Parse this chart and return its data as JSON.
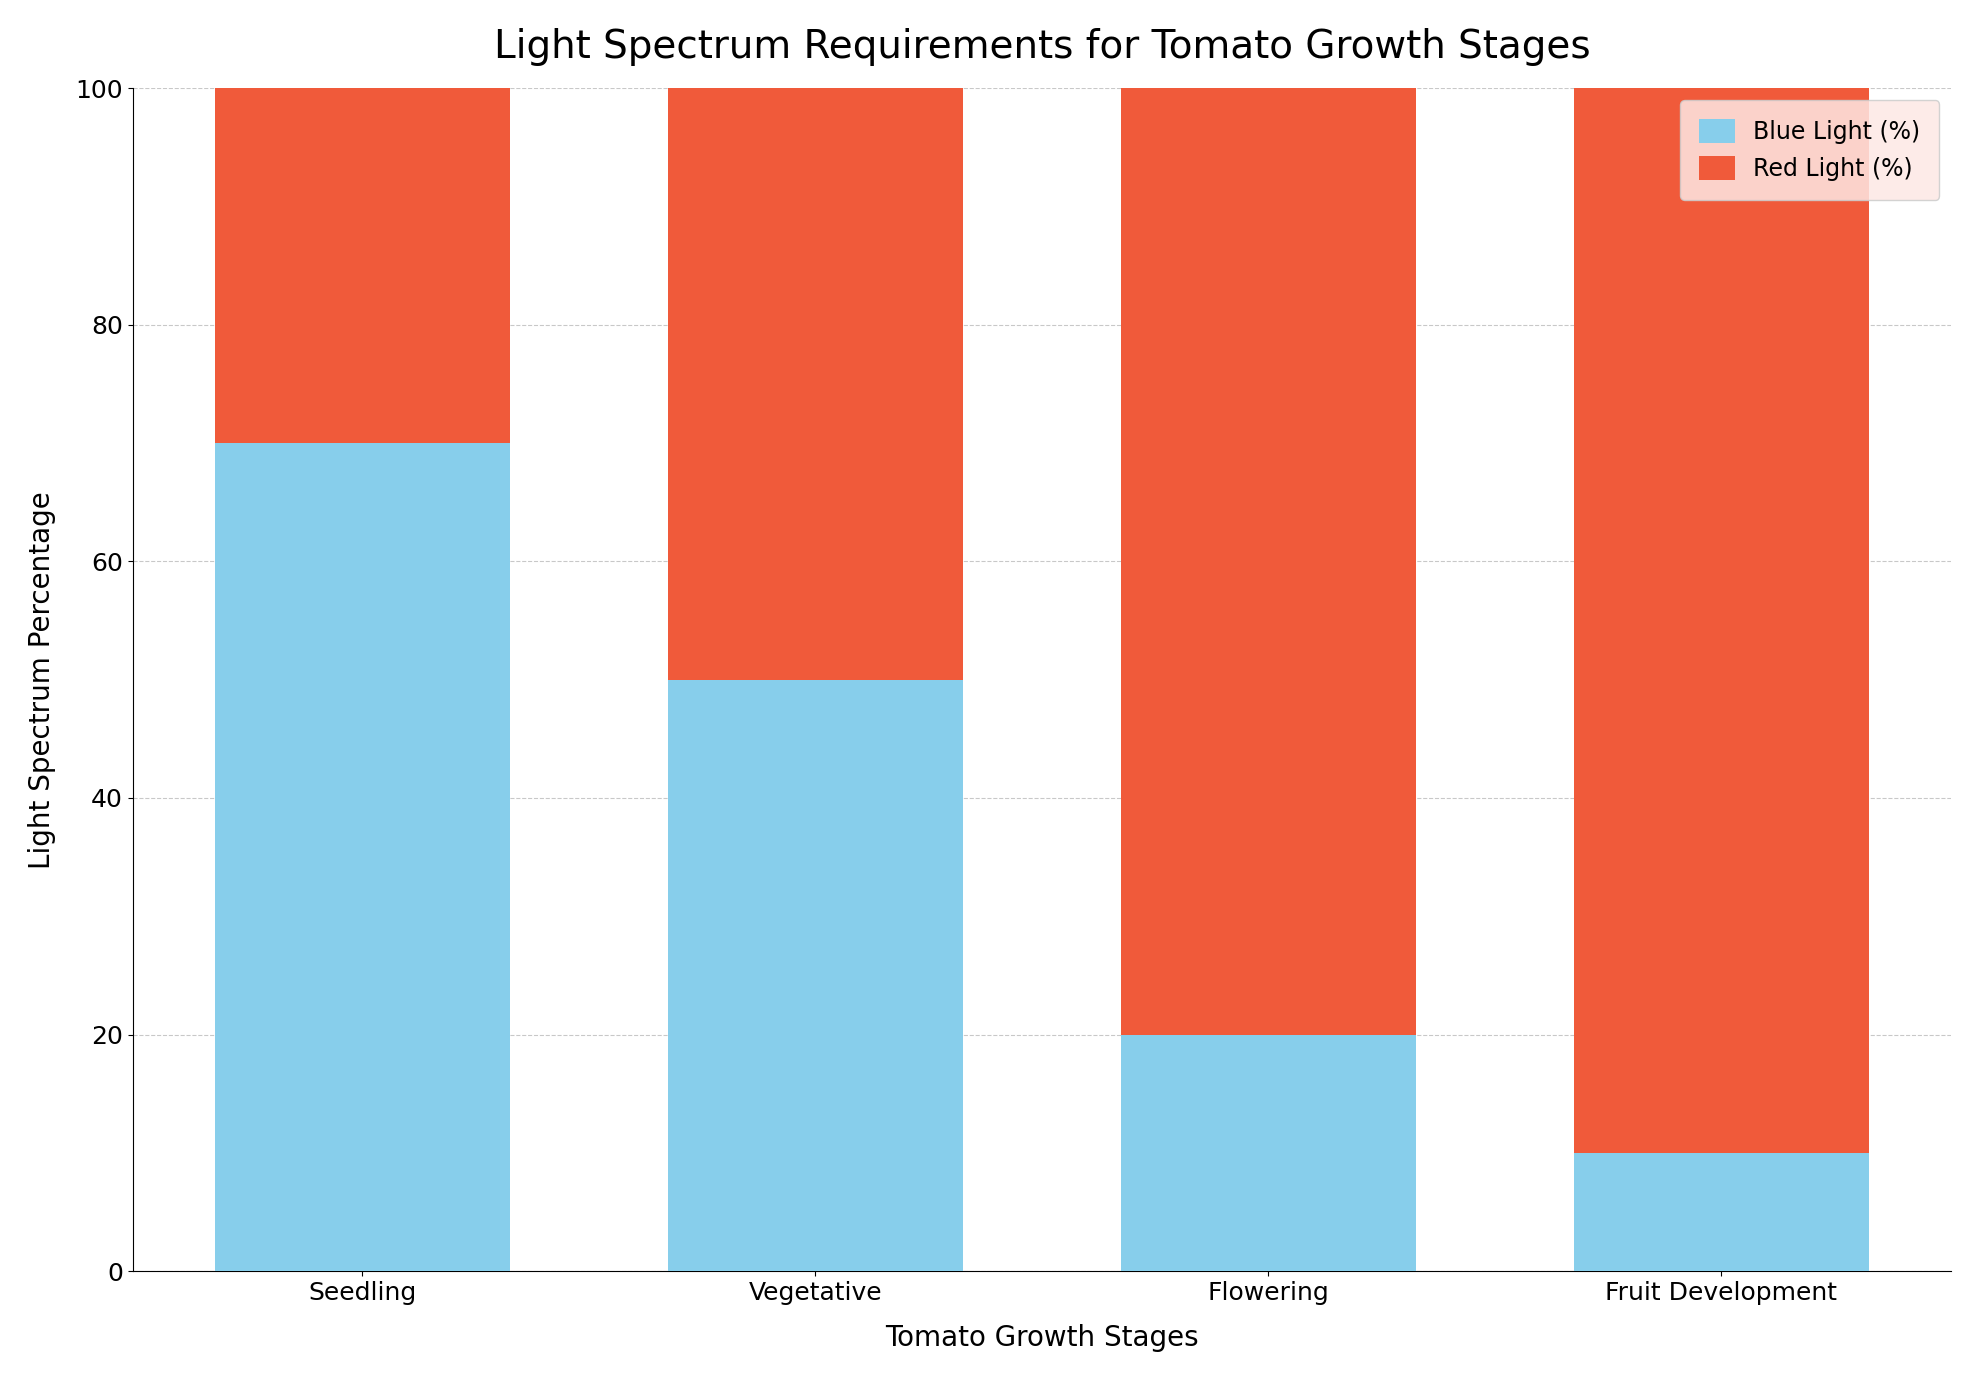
{
  "title": "Light Spectrum Requirements for Tomato Growth Stages",
  "xlabel": "Tomato Growth Stages",
  "ylabel": "Light Spectrum Percentage",
  "categories": [
    "Seedling",
    "Vegetative",
    "Flowering",
    "Fruit Development"
  ],
  "blue_light": [
    70,
    50,
    20,
    10
  ],
  "red_light": [
    30,
    50,
    80,
    90
  ],
  "blue_color": "#87CEEB",
  "red_color": "#F05A3A",
  "ylim": [
    0,
    100
  ],
  "yticks": [
    0,
    20,
    40,
    60,
    80,
    100
  ],
  "legend_labels": [
    "Blue Light (%)",
    "Red Light (%)"
  ],
  "title_fontsize": 28,
  "label_fontsize": 20,
  "tick_fontsize": 18,
  "legend_fontsize": 17,
  "bar_width": 0.65,
  "background_color": "#ffffff",
  "grid_color": "#bbbbbb",
  "grid_linestyle": "--",
  "grid_alpha": 0.8,
  "legend_facecolor": "#fde8e4"
}
